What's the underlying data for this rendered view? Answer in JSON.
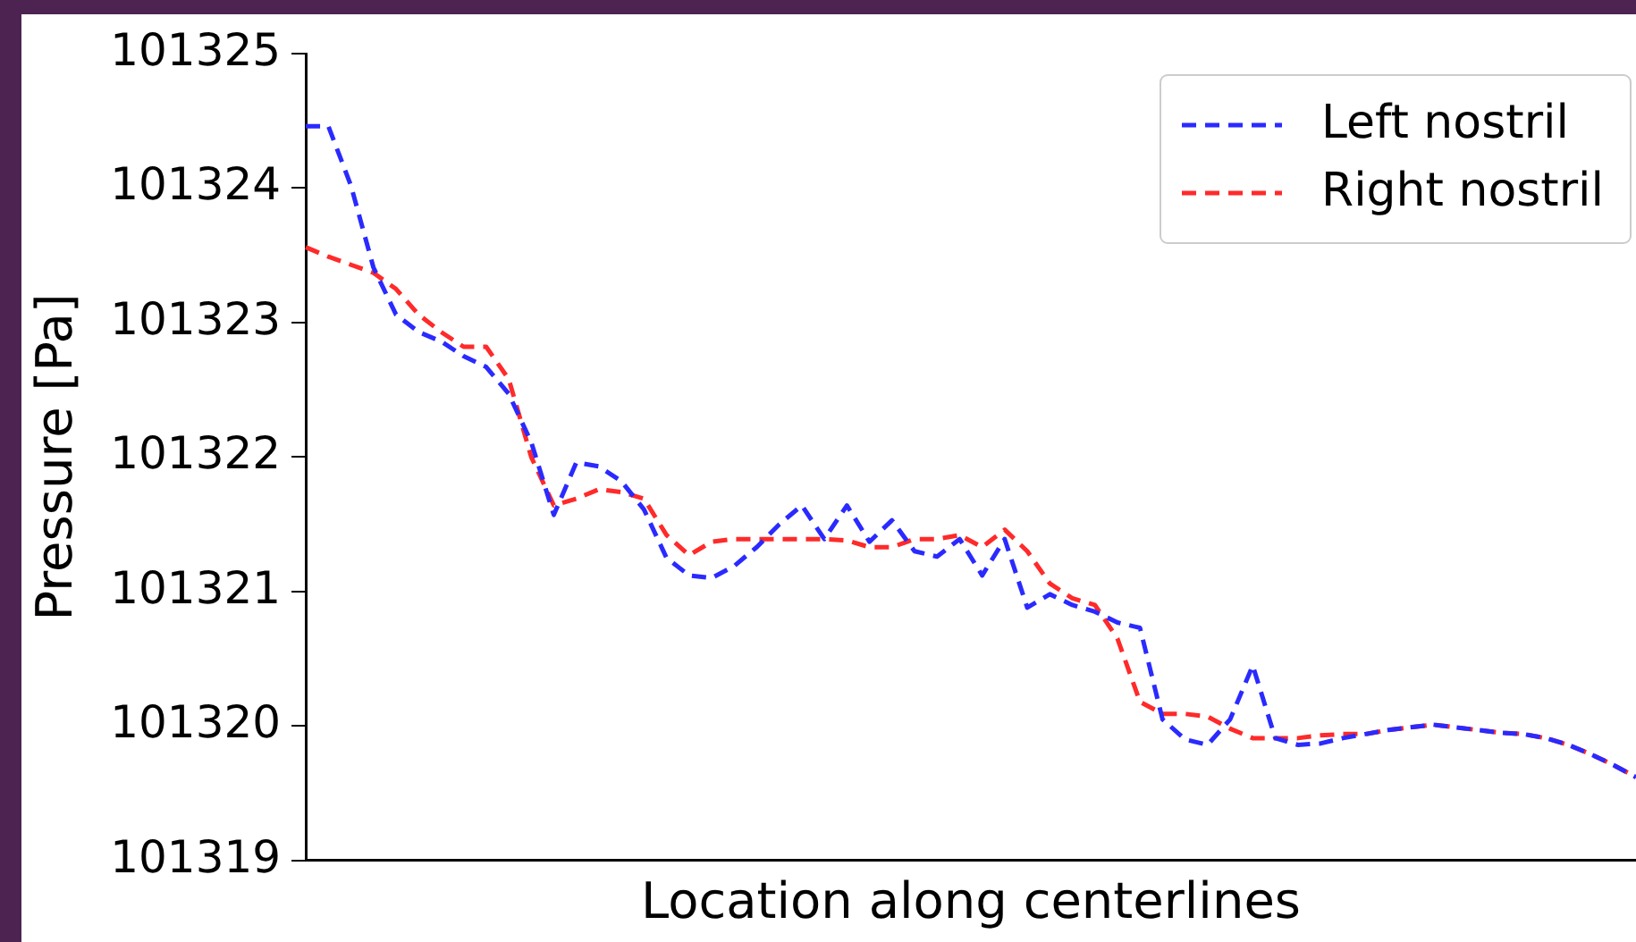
{
  "chart_data": {
    "type": "line",
    "xlabel": "Location along centerlines",
    "ylabel": "Pressure [Pa]",
    "categories": [
      null,
      null,
      null,
      null,
      null,
      null,
      null,
      null,
      null,
      null,
      null,
      null,
      null,
      null,
      null,
      null,
      null,
      null,
      null,
      null,
      null,
      null,
      null,
      null,
      null,
      null,
      null,
      null,
      null,
      null,
      null,
      null,
      null,
      null,
      null,
      null,
      null,
      null,
      null,
      null,
      null,
      null,
      null,
      null,
      null,
      null,
      null,
      null,
      null,
      null,
      null,
      null,
      null,
      null,
      null,
      null,
      null,
      null,
      null,
      null
    ],
    "ylim": [
      101319,
      101325
    ],
    "yticks": [
      101319,
      101320,
      101321,
      101322,
      101323,
      101324,
      101325
    ],
    "grid": false,
    "legend": "top right",
    "marker": "none",
    "line_style": "dashed",
    "tick_labels": "y",
    "series": [
      {
        "name": "Left nostril",
        "color": "#2a2aff",
        "values": [
          101324.46,
          101324.46,
          101324.02,
          101323.41,
          101323.06,
          101322.93,
          101322.86,
          101322.75,
          101322.67,
          101322.47,
          101322.11,
          101321.57,
          101321.96,
          101321.93,
          101321.82,
          101321.61,
          101321.25,
          101321.12,
          101321.1,
          101321.19,
          101321.33,
          101321.5,
          101321.64,
          101321.39,
          101321.64,
          101321.37,
          101321.53,
          101321.3,
          101321.26,
          101321.39,
          101321.12,
          101321.39,
          101320.88,
          101320.98,
          101320.9,
          101320.85,
          101320.77,
          101320.73,
          101320.05,
          101319.9,
          101319.86,
          101320.05,
          101320.45,
          101319.91,
          101319.86,
          101319.87,
          101319.91,
          101319.94,
          101319.97,
          101319.99,
          101320.01,
          101319.99,
          101319.97,
          101319.95,
          101319.94,
          101319.91,
          101319.86,
          101319.79,
          101319.71,
          101319.62
        ]
      },
      {
        "name": "Right nostril",
        "color": "#ff2a2a",
        "values": [
          101323.56,
          101323.49,
          101323.43,
          101323.37,
          101323.25,
          101323.06,
          101322.93,
          101322.82,
          101322.82,
          101322.58,
          101322.0,
          101321.64,
          101321.69,
          101321.76,
          101321.74,
          101321.69,
          101321.42,
          101321.27,
          101321.37,
          101321.39,
          101321.39,
          101321.39,
          101321.39,
          101321.39,
          101321.38,
          101321.33,
          101321.33,
          101321.39,
          101321.39,
          101321.42,
          101321.33,
          101321.46,
          101321.3,
          101321.06,
          101320.95,
          101320.9,
          101320.65,
          101320.18,
          101320.09,
          101320.09,
          101320.07,
          101319.98,
          101319.91,
          101319.91,
          101319.91,
          101319.93,
          101319.94,
          101319.94,
          101319.97,
          101319.99,
          101320.01,
          101319.99,
          101319.97,
          101319.95,
          101319.94,
          101319.91,
          101319.86,
          101319.79,
          101319.71,
          101319.62
        ]
      }
    ]
  }
}
